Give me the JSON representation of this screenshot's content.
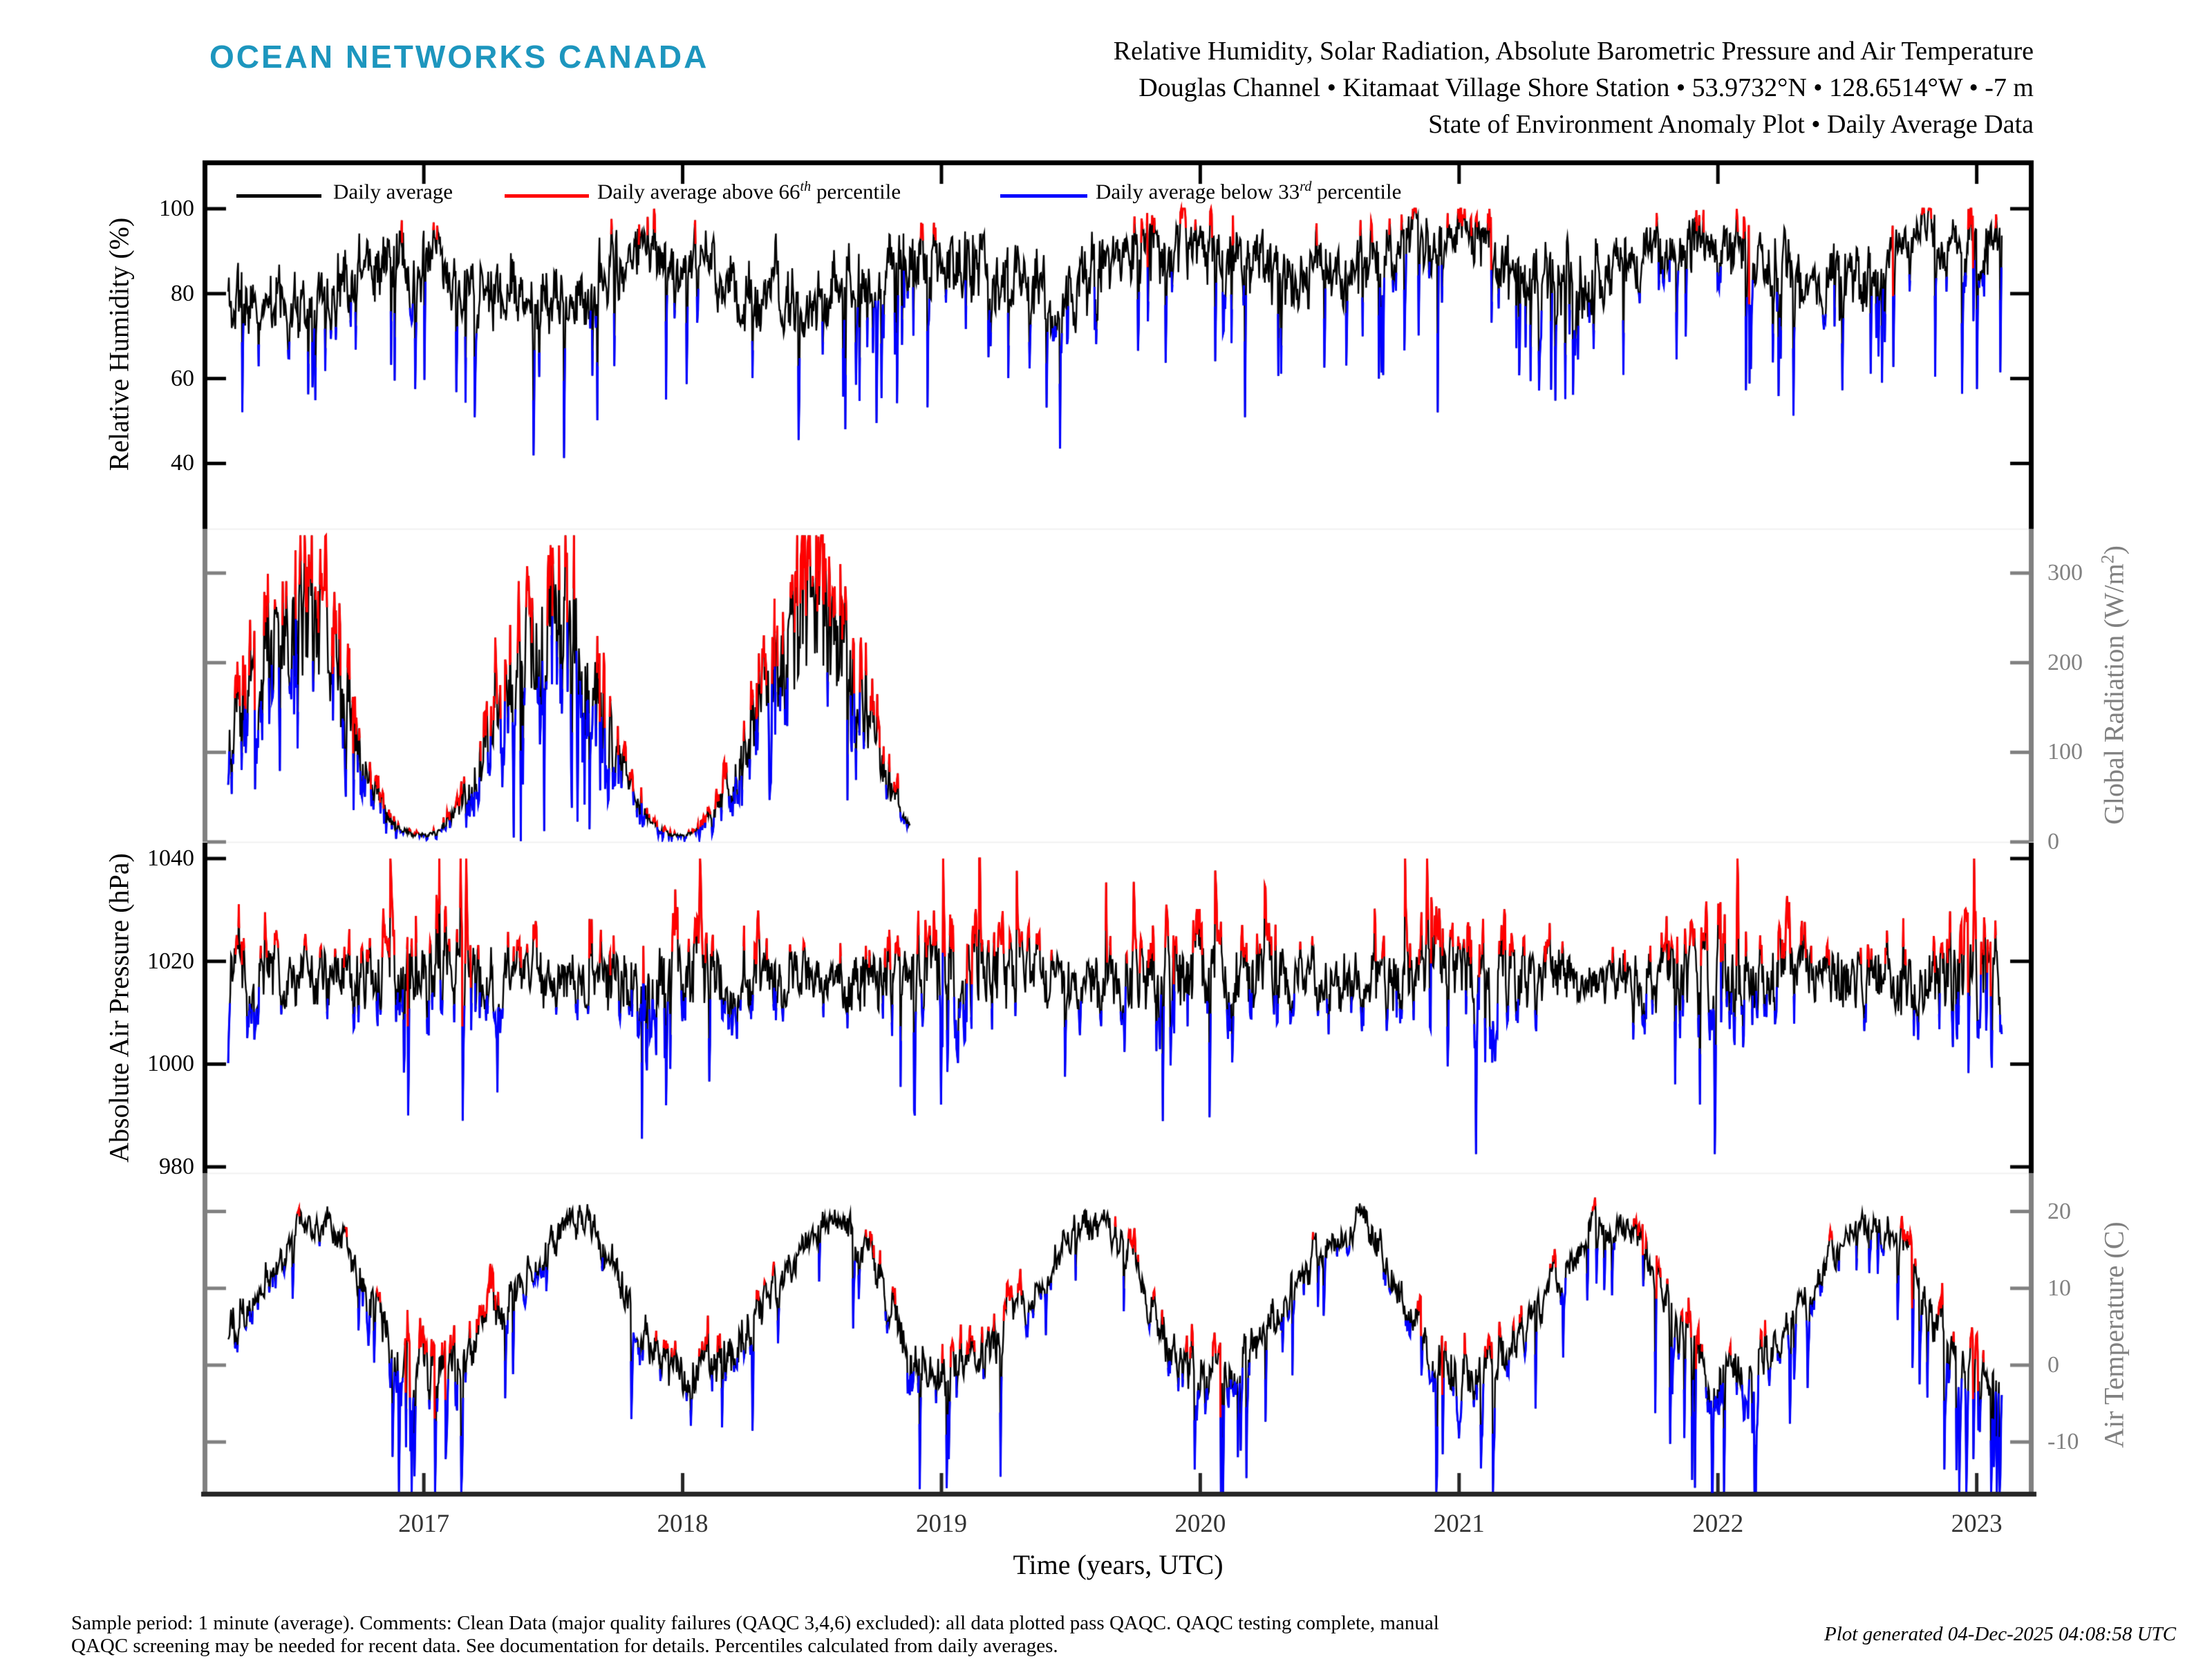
{
  "header": {
    "logo": "OCEAN NETWORKS CANADA",
    "logo_color": "#1D96BE",
    "title_lines": [
      "Relative Humidity, Solar Radiation, Absolute Barometric Pressure and Air Temperature",
      "Douglas Channel • Kitamaat Village Shore Station • 53.9732°N • 128.6514°W • -7 m",
      "State of Environment Anomaly Plot • Daily Average Data"
    ]
  },
  "legend": {
    "items": [
      {
        "name": "daily-average",
        "color": "#000000",
        "prefix": "Daily average",
        "sup": "",
        "suffix": ""
      },
      {
        "name": "above-66th",
        "color": "#ff0000",
        "prefix": "Daily average above 66",
        "sup": "th",
        "suffix": " percentile"
      },
      {
        "name": "below-33rd",
        "color": "#0000ff",
        "prefix": "Daily average below 33",
        "sup": "rd",
        "suffix": " percentile"
      }
    ]
  },
  "xaxis": {
    "label": "Time (years, UTC)",
    "ticks": [
      2017,
      2018,
      2019,
      2020,
      2021,
      2022,
      2023
    ],
    "xlim": [
      2016.145,
      2023.22
    ],
    "axis_color": "#262626"
  },
  "footer": {
    "line1": "Sample period: 1 minute (average). Comments: Clean Data (major quality failures (QAQC 3,4,6) excluded): all data plotted pass QAQC. QAQC testing complete, manual",
    "line2": "QAQC screening may be needed for recent data. See documentation for details. Percentiles calculated from daily averages.",
    "generated": "Plot generated 04-Dec-2025 04:08:58 UTC"
  },
  "chart_data": [
    {
      "type": "line",
      "name": "relative-humidity",
      "ylabel": {
        "prefix": "Relative Humidity (%)",
        "sup": "",
        "suffix": ""
      },
      "side": "left",
      "axis_color": "#000000",
      "yticks": [
        100,
        80,
        60,
        40
      ],
      "ylim": [
        24.6,
        111.4
      ],
      "data_start": 2016.244,
      "data_end": 2023.099,
      "series_colors": {
        "average": "#000000",
        "above": "#ff0000",
        "below": "#0000ff"
      },
      "model": {
        "seed": 11,
        "mode": "additive",
        "monthly": [
          87,
          84,
          81,
          79,
          78,
          77,
          78,
          81,
          85,
          88,
          88,
          87
        ],
        "trend": {
          "from": 2018.6,
          "rate": 3.2,
          "cap": 6
        },
        "ar_phi": 0.78,
        "ar_sigma": 4.5,
        "white_sigma": 4.0,
        "winter_boost": 0,
        "event_prob": 0.05,
        "event_min": 8,
        "event_max": 34,
        "event_sign": -1,
        "event_shape": 0.45,
        "event_winter": false,
        "clamp": [
          31,
          100
        ],
        "red_thresh": 5,
        "blue_thresh": 10,
        "red_floor": 95.5
      }
    },
    {
      "type": "line",
      "name": "solar-radiation",
      "ylabel": {
        "prefix": "Global Radiation (W/m",
        "sup": "2",
        "suffix": ")"
      },
      "side": "right",
      "axis_color": "#808080",
      "yticks": [
        300,
        200,
        100,
        0
      ],
      "ylim": [
        0,
        349.4
      ],
      "data_start": 2016.244,
      "data_end": 2018.88,
      "series_colors": {
        "average": "#000000",
        "above": "#ff0000",
        "below": "#0000ff"
      },
      "model": {
        "seed": 23,
        "mode": "relative",
        "monthly": [
          10,
          35,
          85,
          150,
          215,
          255,
          265,
          225,
          150,
          70,
          22,
          8
        ],
        "ar_phi": 0.55,
        "ar_sigma": 0.3,
        "white_sigma": 0.22,
        "winter_boost": 0,
        "event_prob": 0.07,
        "event_min": 0.25,
        "event_max": 0.6,
        "event_sign": -1,
        "event_shape": 0.5,
        "event_winter": false,
        "clamp": [
          1,
          342
        ],
        "red_thresh": 0.13,
        "blue_thresh": 0.3
      }
    },
    {
      "type": "line",
      "name": "absolute-air-pressure",
      "ylabel": {
        "prefix": "Absolute Air Pressure (hPa)",
        "sup": "",
        "suffix": ""
      },
      "side": "left",
      "axis_color": "#000000",
      "yticks": [
        1040,
        1020,
        1000,
        980
      ],
      "ylim": [
        978.8,
        1043.1
      ],
      "data_start": 2016.244,
      "data_end": 2023.099,
      "series_colors": {
        "average": "#000000",
        "above": "#ff0000",
        "below": "#0000ff"
      },
      "model": {
        "seed": 37,
        "mode": "additive",
        "monthly": [
          1018,
          1017.5,
          1017,
          1017.5,
          1017,
          1016.5,
          1016.5,
          1016.5,
          1016,
          1016.5,
          1017,
          1018
        ],
        "ar_phi": 0.7,
        "ar_sigma": 4.0,
        "white_sigma": 2.2,
        "winter_boost": 0.9,
        "event_prob": 0.03,
        "event_min": 6,
        "event_max": 16,
        "event_sign": 0,
        "event_shape": 0.5,
        "event_winter": true,
        "clamp": [
          982.5,
          1040
        ],
        "red_thresh": 5.5,
        "blue_thresh": 6.5
      }
    },
    {
      "type": "line",
      "name": "air-temperature",
      "ylabel": {
        "prefix": "Air Temperature (C)",
        "sup": "",
        "suffix": ""
      },
      "side": "right",
      "axis_color": "#808080",
      "yticks": [
        20,
        10,
        0,
        -10
      ],
      "ylim": [
        -17.1,
        25.0
      ],
      "data_start": 2016.244,
      "data_end": 2023.099,
      "series_colors": {
        "average": "#000000",
        "above": "#ff0000",
        "below": "#0000ff"
      },
      "model": {
        "seed": 53,
        "mode": "additive",
        "monthly": [
          -1.5,
          0,
          2.5,
          6.5,
          11,
          15,
          18,
          18.5,
          14.5,
          8.5,
          2.5,
          -1
        ],
        "ar_phi": 0.82,
        "ar_sigma": 1.25,
        "white_sigma": 0.9,
        "winter_boost": 1.1,
        "event_prob": 0.03,
        "event_min": 4,
        "event_max": 11,
        "event_sign": -1,
        "event_shape": 0.55,
        "event_winter": true,
        "clamp": [
          -16.5,
          23
        ],
        "red_thresh": 2.8,
        "blue_thresh": 2.8
      }
    }
  ]
}
